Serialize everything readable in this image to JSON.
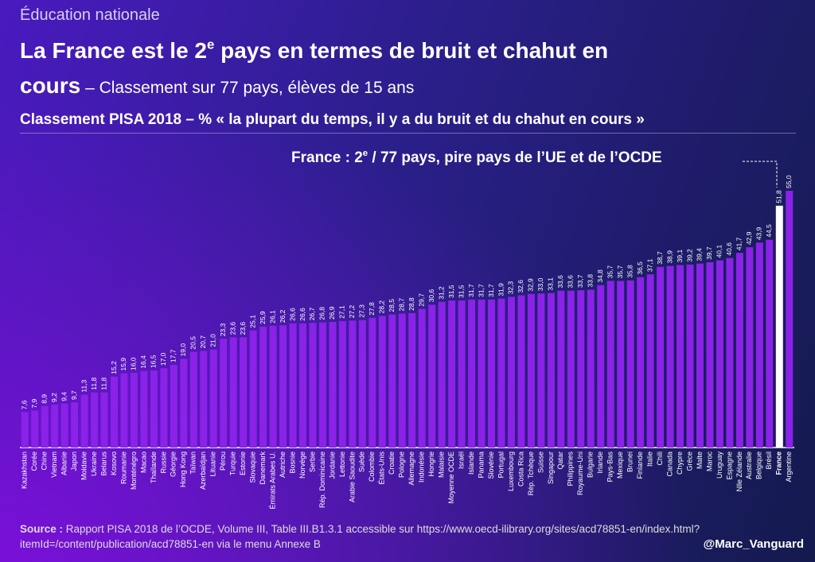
{
  "chart_data": {
    "type": "bar",
    "kicker": "Éducation nationale",
    "title": [
      "La France est le 2",
      "e",
      " pays en termes de bruit et chahut en",
      "cours"
    ],
    "subtitle": " – Classement sur 77 pays, élèves de 15 ans",
    "chart_title": "Classement PISA 2018 – % « la plupart du temps, il y a du bruit et du chahut en cours »",
    "annotation": [
      "France : 2",
      "e",
      " / 77 pays, pire pays de l’UE et de l’OCDE"
    ],
    "source_label": "Source :",
    "source": " Rapport PISA 2018 de l’OCDE, Volume III, Table III.B1.3.1 accessible sur https://www.oecd-ilibrary.org/sites/acd78851-en/index.html?itemId=/content/publication/acd78851-en via le menu Annexe B",
    "credit": "@Marc_Vanguard",
    "categories": [
      "Kazakhstan",
      "Corée",
      "Chine",
      "Vietnam",
      "Albanie",
      "Japon",
      "Moldavie",
      "Ukraine",
      "Belarus",
      "Kosovo",
      "Roumanie",
      "Monténégro",
      "Macao",
      "Thaïlande",
      "Russie",
      "Géorgie",
      "Hong Kong",
      "Taïwan",
      "Azerbaïdjan",
      "Lituanie",
      "Pérou",
      "Turquie",
      "Estonie",
      "Slovaquie",
      "Danemark",
      "Émirats Arabes U.",
      "Autriche",
      "Bosnie",
      "Norvège",
      "Serbie",
      "Rép. Dominicaine",
      "Jordanie",
      "Lettonie",
      "Arabie Saoudite",
      "Suède",
      "Colombie",
      "États-Unis",
      "Croatie",
      "Pologne",
      "Allemagne",
      "Indonésie",
      "Hongrie",
      "Malaisie",
      "Moyenne OCDE",
      "Israël",
      "Islande",
      "Panama",
      "Slovénie",
      "Portugal",
      "Luxembourg",
      "Costa Rica",
      "Rép. Tchèque",
      "Suisse",
      "Singapour",
      "Qatar",
      "Philippines",
      "Royaume-Uni",
      "Bulgarie",
      "Irlande",
      "Pays-Bas",
      "Mexique",
      "Brunei",
      "Finlande",
      "Italie",
      "Chili",
      "Canada",
      "Chypre",
      "Grèce",
      "Malte",
      "Maroc",
      "Uruguay",
      "Espagne",
      "Nlle Zélande",
      "Australie",
      "Belgique",
      "Brésil",
      "France",
      "Argentine"
    ],
    "values": [
      7.6,
      7.9,
      8.9,
      9.2,
      9.4,
      9.7,
      11.3,
      11.8,
      11.8,
      15.2,
      15.9,
      16.0,
      16.4,
      16.5,
      17.0,
      17.7,
      19.0,
      20.5,
      20.7,
      21.0,
      23.3,
      23.6,
      23.6,
      25.1,
      25.9,
      26.1,
      26.2,
      26.6,
      26.6,
      26.7,
      26.8,
      26.9,
      27.1,
      27.2,
      27.3,
      27.8,
      28.2,
      28.5,
      28.7,
      28.8,
      29.7,
      30.6,
      31.2,
      31.5,
      31.5,
      31.7,
      31.7,
      31.7,
      31.9,
      32.3,
      32.6,
      32.9,
      33.0,
      33.1,
      33.6,
      33.6,
      33.7,
      33.8,
      34.8,
      35.7,
      35.7,
      35.8,
      36.5,
      37.1,
      38.7,
      38.9,
      39.1,
      39.2,
      39.4,
      39.7,
      40.1,
      40.6,
      41.7,
      42.9,
      43.9,
      44.5,
      51.8,
      55.0
    ],
    "value_labels": [
      "7,6",
      "7,9",
      "8,9",
      "9,2",
      "9,4",
      "9,7",
      "11,3",
      "11,8",
      "11,8",
      "15,2",
      "15,9",
      "16,0",
      "16,4",
      "16,5",
      "17,0",
      "17,7",
      "19,0",
      "20,5",
      "20,7",
      "21,0",
      "23,3",
      "23,6",
      "23,6",
      "25,1",
      "25,9",
      "26,1",
      "26,2",
      "26,6",
      "26,6",
      "26,7",
      "26,8",
      "26,9",
      "27,1",
      "27,2",
      "27,3",
      "27,8",
      "28,2",
      "28,5",
      "28,7",
      "28,8",
      "29,7",
      "30,6",
      "31,2",
      "31,5",
      "31,5",
      "31,7",
      "31,7",
      "31,7",
      "31,9",
      "32,3",
      "32,6",
      "32,9",
      "33,0",
      "33,1",
      "33,6",
      "33,6",
      "33,7",
      "33,8",
      "34,8",
      "35,7",
      "35,7",
      "35,8",
      "36,5",
      "37,1",
      "38,7",
      "38,9",
      "39,1",
      "39,2",
      "39,4",
      "39,7",
      "40,1",
      "40,6",
      "41,7",
      "42,9",
      "43,9",
      "44,5",
      "51,8",
      "55,0"
    ],
    "color": "#8b22e8",
    "highlight": "France",
    "highlight_color": "#ffffff"
  }
}
